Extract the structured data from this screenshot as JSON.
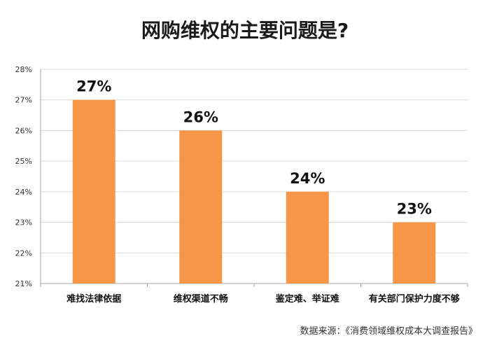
{
  "source": "数据来源：《消费领域维权成本大调查报告》",
  "chart_data": {
    "type": "bar",
    "title": "网购维权的主要问题是?",
    "categories": [
      "难找法律依据",
      "维权渠道不畅",
      "鉴定难、举证难",
      "有关部门保护力度不够"
    ],
    "values": [
      27,
      26,
      24,
      23
    ],
    "data_labels": [
      "27%",
      "26%",
      "24%",
      "23%"
    ],
    "ylim": [
      21,
      28
    ],
    "yticks": [
      21,
      22,
      23,
      24,
      25,
      26,
      27,
      28
    ],
    "ytick_labels": [
      "21%",
      "22%",
      "23%",
      "24%",
      "25%",
      "26%",
      "27%",
      "28%"
    ],
    "grid": true,
    "bar_color": "#F79646",
    "grid_color": "#D9D9D9",
    "axis_color": "#A6A6A6"
  }
}
